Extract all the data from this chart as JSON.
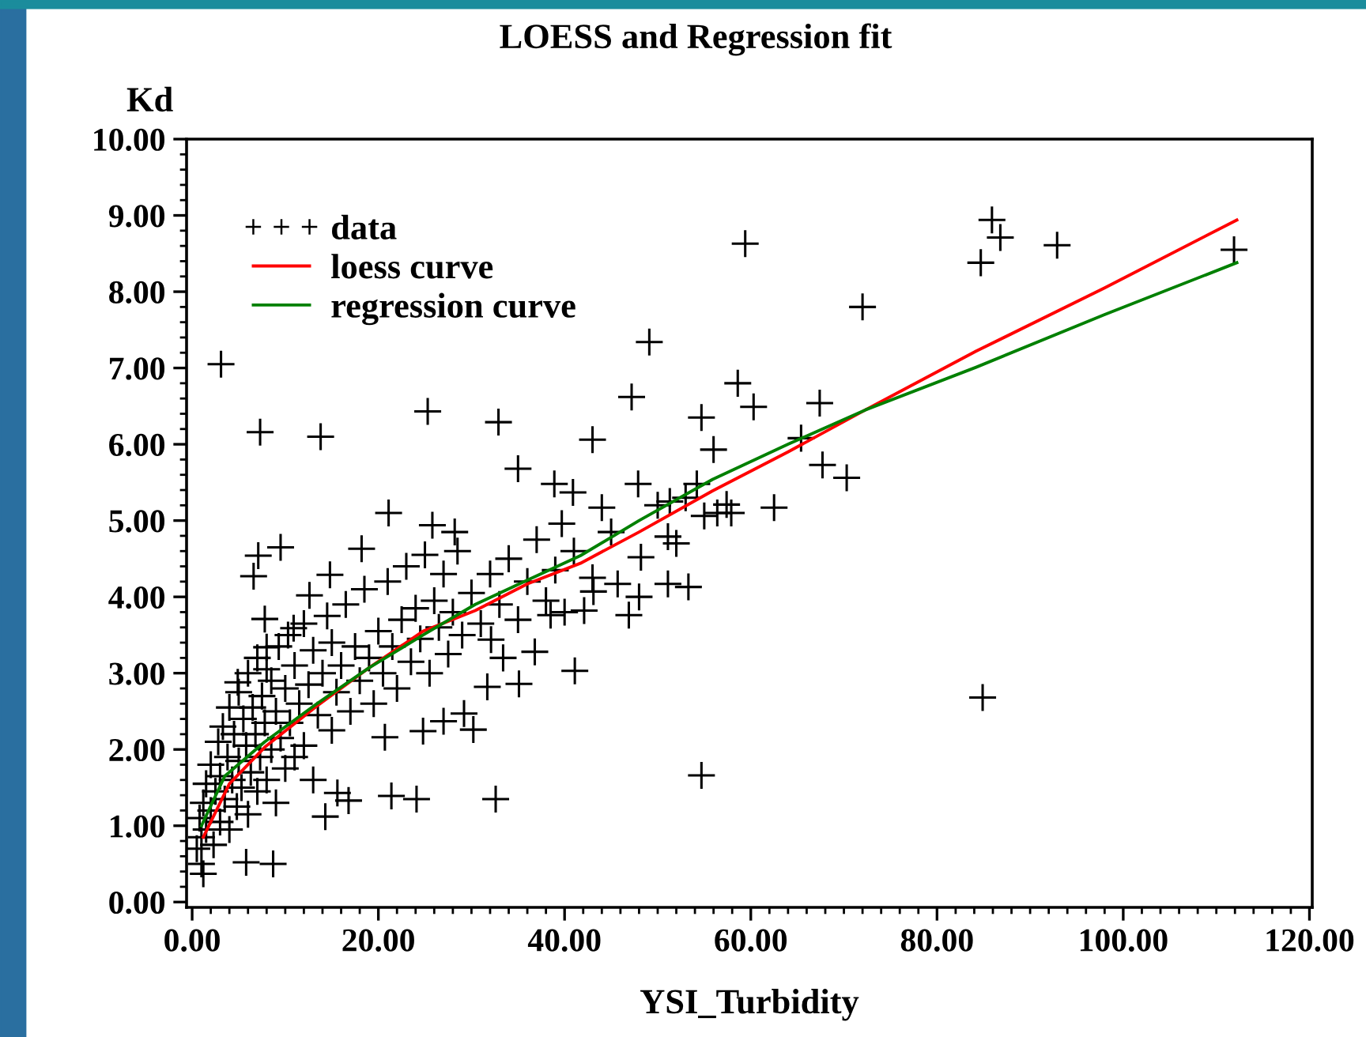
{
  "chart_data": {
    "type": "scatter",
    "title": "LOESS and Regression fit",
    "xlabel": "YSI_Turbidity",
    "ylabel": "Kd",
    "xlim": [
      -0.6,
      120.3
    ],
    "ylim": [
      -0.07,
      10.0
    ],
    "xticks": [
      {
        "value": 0,
        "label": "0.00"
      },
      {
        "value": 20,
        "label": "20.00"
      },
      {
        "value": 40,
        "label": "40.00"
      },
      {
        "value": 60,
        "label": "60.00"
      },
      {
        "value": 80,
        "label": "80.00"
      },
      {
        "value": 100,
        "label": "100.00"
      },
      {
        "value": 120,
        "label": "120.00"
      }
    ],
    "yticks": [
      {
        "value": 0,
        "label": "0.00"
      },
      {
        "value": 1,
        "label": "1.00"
      },
      {
        "value": 2,
        "label": "2.00"
      },
      {
        "value": 3,
        "label": "3.00"
      },
      {
        "value": 4,
        "label": "4.00"
      },
      {
        "value": 5,
        "label": "5.00"
      },
      {
        "value": 6,
        "label": "6.00"
      },
      {
        "value": 7,
        "label": "7.00"
      },
      {
        "value": 8,
        "label": "8.00"
      },
      {
        "value": 9,
        "label": "9.00"
      },
      {
        "value": 10,
        "label": "10.00"
      }
    ],
    "legend": "top left",
    "series": [
      {
        "name": "data",
        "marker": "cross",
        "color": "#000000",
        "x": [
          3.1,
          7.3,
          13.8,
          25.3,
          32.9,
          43.0,
          49.1,
          54.7,
          56.0,
          59.4,
          58.6,
          60.3,
          47.2,
          35.0,
          85.9,
          86.8,
          84.7,
          92.9,
          111.9,
          72.0,
          67.4,
          65.4,
          67.7,
          70.3,
          57.4,
          57.9,
          56.4,
          62.5,
          84.9,
          38.9,
          40.9,
          44.0,
          47.9,
          54.2,
          51.3,
          39.7,
          51.1,
          48.2,
          55.0,
          51.1,
          53.3,
          45.7,
          43.1,
          46.9,
          42.1,
          38.5,
          36.8,
          41.1,
          35.1,
          33.4,
          31.7,
          32.1,
          54.7,
          32.6,
          30.2,
          29.2,
          27.0,
          24.8,
          24.1,
          21.4,
          20.7,
          16.8,
          15.6,
          14.3,
          8.7,
          5.8,
          1.2,
          1.0,
          21.1,
          25.8,
          28.2,
          18.2,
          9.5,
          7.1,
          6.6,
          12.6,
          14.8,
          7.8,
          4.9,
          8.0,
          10.9,
          0.5,
          0.8,
          1.0,
          1.2,
          1.5,
          1.5,
          2.0,
          2.0,
          2.3,
          2.5,
          2.8,
          3.0,
          3.0,
          3.3,
          3.5,
          3.8,
          4.0,
          4.0,
          4.3,
          4.5,
          4.8,
          5.0,
          5.0,
          5.3,
          5.5,
          5.8,
          6.0,
          6.0,
          6.3,
          6.5,
          6.8,
          7.0,
          7.0,
          7.3,
          7.5,
          7.8,
          8.0,
          8.0,
          8.5,
          8.5,
          9.0,
          9.0,
          9.3,
          9.5,
          10.0,
          10.0,
          10.3,
          10.5,
          11.0,
          11.0,
          11.5,
          12.0,
          12.0,
          12.5,
          13.0,
          13.0,
          13.5,
          14.0,
          14.5,
          15.0,
          15.0,
          15.5,
          16.0,
          16.5,
          17.0,
          17.5,
          18.0,
          18.5,
          19.0,
          19.5,
          20.0,
          20.5,
          21.0,
          21.5,
          22.0,
          22.5,
          23.0,
          23.5,
          24.0,
          24.5,
          25.0,
          25.5,
          26.0,
          26.5,
          27.0,
          27.5,
          28.0,
          28.5,
          29.0,
          30.0,
          31.0,
          32.0,
          33.0,
          34.0,
          35.0,
          36.0,
          37.0,
          38.0,
          39.0,
          40.0,
          41.0,
          43.0,
          45.0,
          48.0,
          50.0,
          52.0,
          53.0
        ],
        "values": [
          7.05,
          6.16,
          6.1,
          6.43,
          6.29,
          6.06,
          7.34,
          6.35,
          5.93,
          8.63,
          6.8,
          6.49,
          6.62,
          5.68,
          8.94,
          8.71,
          8.38,
          8.61,
          8.55,
          7.8,
          6.54,
          6.08,
          5.73,
          5.56,
          5.21,
          5.1,
          5.1,
          5.17,
          2.68,
          5.48,
          5.37,
          5.17,
          5.48,
          5.48,
          5.25,
          4.96,
          4.79,
          4.52,
          5.06,
          4.17,
          4.13,
          4.17,
          4.07,
          3.76,
          3.82,
          3.76,
          3.28,
          3.03,
          2.86,
          3.2,
          2.82,
          3.44,
          1.66,
          1.35,
          2.26,
          2.47,
          2.37,
          2.24,
          1.35,
          1.39,
          2.16,
          1.33,
          1.43,
          1.12,
          0.5,
          0.52,
          0.37,
          0.5,
          5.1,
          4.94,
          4.85,
          4.63,
          4.65,
          4.54,
          4.27,
          4.02,
          4.29,
          3.71,
          2.88,
          3.34,
          3.59,
          0.7,
          1.1,
          0.85,
          1.3,
          0.95,
          1.55,
          1.2,
          1.8,
          0.75,
          1.45,
          2.1,
          1.05,
          1.65,
          2.3,
          1.35,
          1.9,
          2.55,
          0.95,
          1.6,
          2.2,
          1.25,
          2.75,
          1.85,
          1.5,
          2.4,
          2.05,
          1.15,
          3.0,
          1.7,
          2.55,
          2.2,
          1.45,
          3.2,
          1.9,
          2.7,
          2.35,
          1.6,
          3.05,
          2.0,
          2.9,
          1.3,
          2.5,
          3.35,
          2.15,
          1.75,
          2.8,
          3.5,
          2.35,
          1.9,
          3.1,
          2.6,
          3.65,
          2.05,
          2.85,
          3.3,
          1.6,
          2.45,
          3.0,
          3.75,
          2.25,
          3.4,
          2.75,
          3.1,
          3.9,
          2.5,
          3.35,
          2.9,
          4.1,
          3.2,
          2.6,
          3.55,
          3.0,
          4.2,
          3.35,
          2.8,
          3.7,
          4.4,
          3.15,
          3.85,
          3.45,
          4.55,
          3.0,
          3.95,
          3.6,
          4.3,
          3.25,
          3.8,
          4.6,
          3.5,
          4.05,
          3.65,
          4.3,
          3.9,
          4.5,
          3.7,
          4.2,
          4.75,
          3.95,
          4.35,
          3.8,
          4.6,
          4.25,
          4.85,
          4.0,
          5.2,
          4.7,
          5.3
        ]
      },
      {
        "name": "loess curve",
        "type": "line",
        "marker": "none",
        "color": "#ff0000",
        "x": [
          1.2,
          4.0,
          7.8,
          13.4,
          19.0,
          24.8,
          30.4,
          36.0,
          41.7,
          48.0,
          55.9,
          64.0,
          72.3,
          84.2,
          98.0,
          112.2
        ],
        "values": [
          0.85,
          1.55,
          2.03,
          2.57,
          3.07,
          3.55,
          3.82,
          4.17,
          4.44,
          4.85,
          5.39,
          5.9,
          6.45,
          7.22,
          8.05,
          8.94
        ]
      },
      {
        "name": "regression curve",
        "type": "line",
        "marker": "none",
        "color": "#008000",
        "x": [
          1.0,
          3.5,
          7.8,
          13.4,
          19.0,
          24.8,
          30.4,
          36.0,
          41.7,
          48.0,
          55.9,
          64.0,
          72.3,
          84.2,
          98.0,
          112.2
        ],
        "values": [
          1.0,
          1.65,
          2.1,
          2.6,
          3.07,
          3.5,
          3.9,
          4.22,
          4.54,
          5.0,
          5.54,
          6.0,
          6.45,
          7.01,
          7.7,
          8.38
        ]
      }
    ]
  }
}
